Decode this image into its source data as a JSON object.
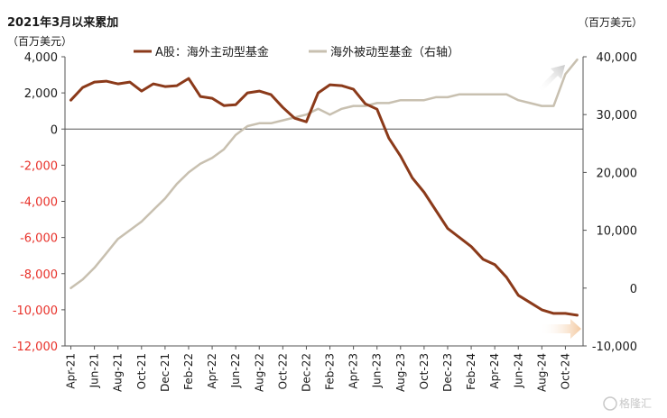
{
  "header": {
    "title": "2021年3月以来累加",
    "left_unit": "（百万美元）",
    "right_unit": "（百万美元）"
  },
  "watermark": "格隆汇",
  "colors": {
    "active": "#8B3A1A",
    "passive": "#C8C0B0",
    "negative_tick": "#E8312A",
    "positive_tick": "#1a1a1a"
  },
  "chart_data": {
    "type": "line",
    "x": [
      "2021-04",
      "2021-05",
      "2021-06",
      "2021-07",
      "2021-08",
      "2021-09",
      "2021-10",
      "2021-11",
      "2021-12",
      "2022-01",
      "2022-02",
      "2022-03",
      "2022-04",
      "2022-05",
      "2022-06",
      "2022-07",
      "2022-08",
      "2022-09",
      "2022-10",
      "2022-11",
      "2022-12",
      "2023-01",
      "2023-02",
      "2023-03",
      "2023-04",
      "2023-05",
      "2023-06",
      "2023-07",
      "2023-08",
      "2023-09",
      "2023-10",
      "2023-11",
      "2023-12",
      "2024-01",
      "2024-02",
      "2024-03",
      "2024-04",
      "2024-05",
      "2024-06",
      "2024-07",
      "2024-08",
      "2024-09",
      "2024-10",
      "2024-11"
    ],
    "x_tick_labels": [
      "Apr-21",
      "Jun-21",
      "Aug-21",
      "Oct-21",
      "Dec-21",
      "Feb-22",
      "Apr-22",
      "Jun-22",
      "Aug-22",
      "Oct-22",
      "Dec-22",
      "Feb-23",
      "Apr-23",
      "Jun-23",
      "Aug-23",
      "Oct-23",
      "Dec-23",
      "Feb-24",
      "Apr-24",
      "Jun-24",
      "Aug-24",
      "Oct-24"
    ],
    "y_left": {
      "ticks": [
        "4,000",
        "2,000",
        "0",
        "-2,000",
        "-4,000",
        "-6,000",
        "-8,000",
        "-10,000",
        "-12,000"
      ],
      "ylim": [
        -12000,
        4000
      ]
    },
    "y_right": {
      "ticks": [
        "40,000",
        "30,000",
        "20,000",
        "10,000",
        "0",
        "-10,000"
      ],
      "ylim": [
        -10000,
        40000
      ]
    },
    "legend": {
      "position": "top"
    },
    "series": [
      {
        "name": "A股：海外主动型基金",
        "axis": "left",
        "values": [
          1600,
          2300,
          2600,
          2650,
          2500,
          2600,
          2100,
          2500,
          2350,
          2400,
          2800,
          1800,
          1700,
          1300,
          1350,
          2000,
          2100,
          1900,
          1200,
          600,
          400,
          2000,
          2450,
          2400,
          2200,
          1400,
          1100,
          -500,
          -1500,
          -2700,
          -3500,
          -4500,
          -5500,
          -6000,
          -6500,
          -7200,
          -7500,
          -8200,
          -9200,
          -9600,
          -10000,
          -10200,
          -10200,
          -10300
        ]
      },
      {
        "name": "海外被动型基金（右轴）",
        "axis": "right",
        "values": [
          0,
          1500,
          3500,
          6000,
          8500,
          10000,
          11500,
          13500,
          15500,
          18000,
          20000,
          21500,
          22500,
          24000,
          26500,
          28000,
          28500,
          28500,
          29000,
          29500,
          30000,
          31000,
          30000,
          31000,
          31500,
          31500,
          32000,
          32000,
          32500,
          32500,
          32500,
          33000,
          33000,
          33500,
          33500,
          33500,
          33500,
          33500,
          32500,
          32000,
          31500,
          31500,
          37000,
          39500
        ]
      }
    ]
  }
}
